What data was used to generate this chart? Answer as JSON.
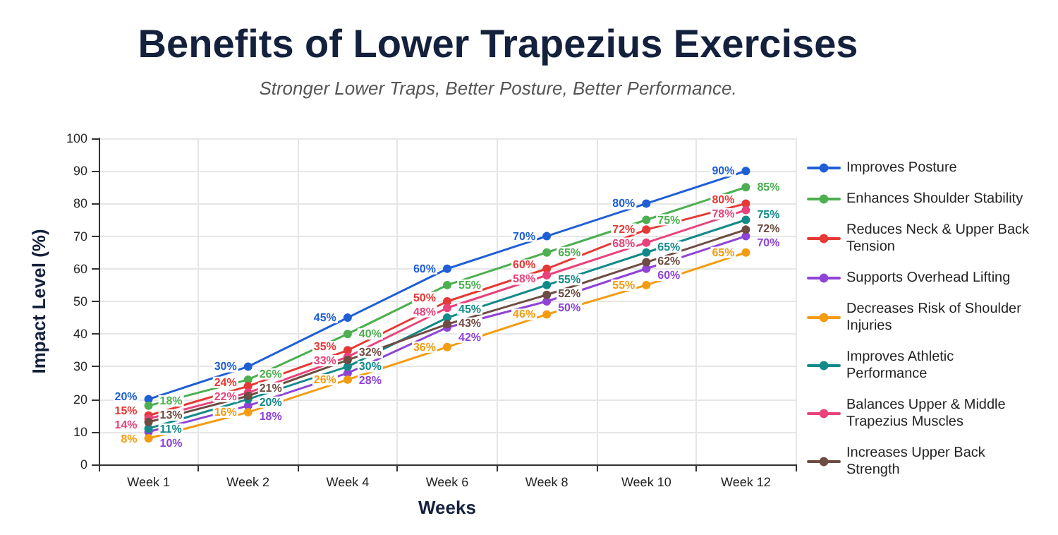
{
  "chart_data": {
    "type": "line",
    "title": "Benefits of Lower Trapezius Exercises",
    "subtitle": "Stronger Lower Traps, Better Posture, Better Performance.",
    "xlabel": "Weeks",
    "ylabel": "Impact Level (%)",
    "categories": [
      "Week 1",
      "Week 2",
      "Week 4",
      "Week 6",
      "Week 8",
      "Week 10",
      "Week 12"
    ],
    "series": [
      {
        "name": "Improves Posture",
        "color": "#1f5fd6",
        "values": [
          20,
          30,
          45,
          60,
          70,
          80,
          90
        ],
        "value_labels": [
          "20%",
          "30%",
          "45%",
          "60%",
          "70%",
          "80%",
          "90%"
        ]
      },
      {
        "name": "Enhances Shoulder Stability",
        "color": "#4caf50",
        "values": [
          18,
          26,
          40,
          55,
          65,
          75,
          85
        ],
        "value_labels": [
          "18%",
          "26%",
          "40%",
          "55%",
          "65%",
          "75%",
          "85%"
        ]
      },
      {
        "name": "Reduces Neck & Upper Back Tension",
        "color": "#e53935",
        "values": [
          15,
          24,
          35,
          50,
          60,
          72,
          80
        ],
        "value_labels": [
          "15%",
          "24%",
          "35%",
          "50%",
          "60%",
          "72%",
          "80%"
        ]
      },
      {
        "name": "Supports Overhead Lifting",
        "color": "#8e44d6",
        "values": [
          10,
          18,
          28,
          42,
          50,
          60,
          70
        ],
        "value_labels": [
          "10%",
          "18%",
          "28%",
          "42%",
          "50%",
          "60%",
          "70%"
        ]
      },
      {
        "name": "Decreases Risk of Shoulder Injuries",
        "color": "#f39c12",
        "values": [
          8,
          16,
          26,
          36,
          46,
          55,
          65
        ],
        "value_labels": [
          "8%",
          "16%",
          "26%",
          "36%",
          "46%",
          "55%",
          "65%"
        ]
      },
      {
        "name": "Improves Athletic Performance",
        "color": "#138a8a",
        "values": [
          11,
          20,
          30,
          45,
          55,
          65,
          75
        ],
        "value_labels": [
          "11%",
          "20%",
          "30%",
          "45%",
          "55%",
          "65%",
          "75%"
        ]
      },
      {
        "name": "Balances Upper & Middle Trapezius Muscles",
        "color": "#e8437a",
        "values": [
          14,
          22,
          33,
          48,
          58,
          68,
          78
        ],
        "value_labels": [
          "14%",
          "22%",
          "33%",
          "48%",
          "58%",
          "68%",
          "78%"
        ]
      },
      {
        "name": "Increases Upper Back Strength",
        "color": "#6d4c41",
        "values": [
          13,
          21,
          32,
          43,
          52,
          62,
          72
        ],
        "value_labels": [
          "13%",
          "21%",
          "32%",
          "43%",
          "52%",
          "62%",
          "72%"
        ]
      }
    ],
    "ylim": [
      0,
      100
    ],
    "yticks": [
      0,
      10,
      20,
      30,
      40,
      50,
      60,
      70,
      80,
      90,
      100
    ],
    "grid": true,
    "legend": "right",
    "marker": "circle",
    "line_style": "solid"
  }
}
